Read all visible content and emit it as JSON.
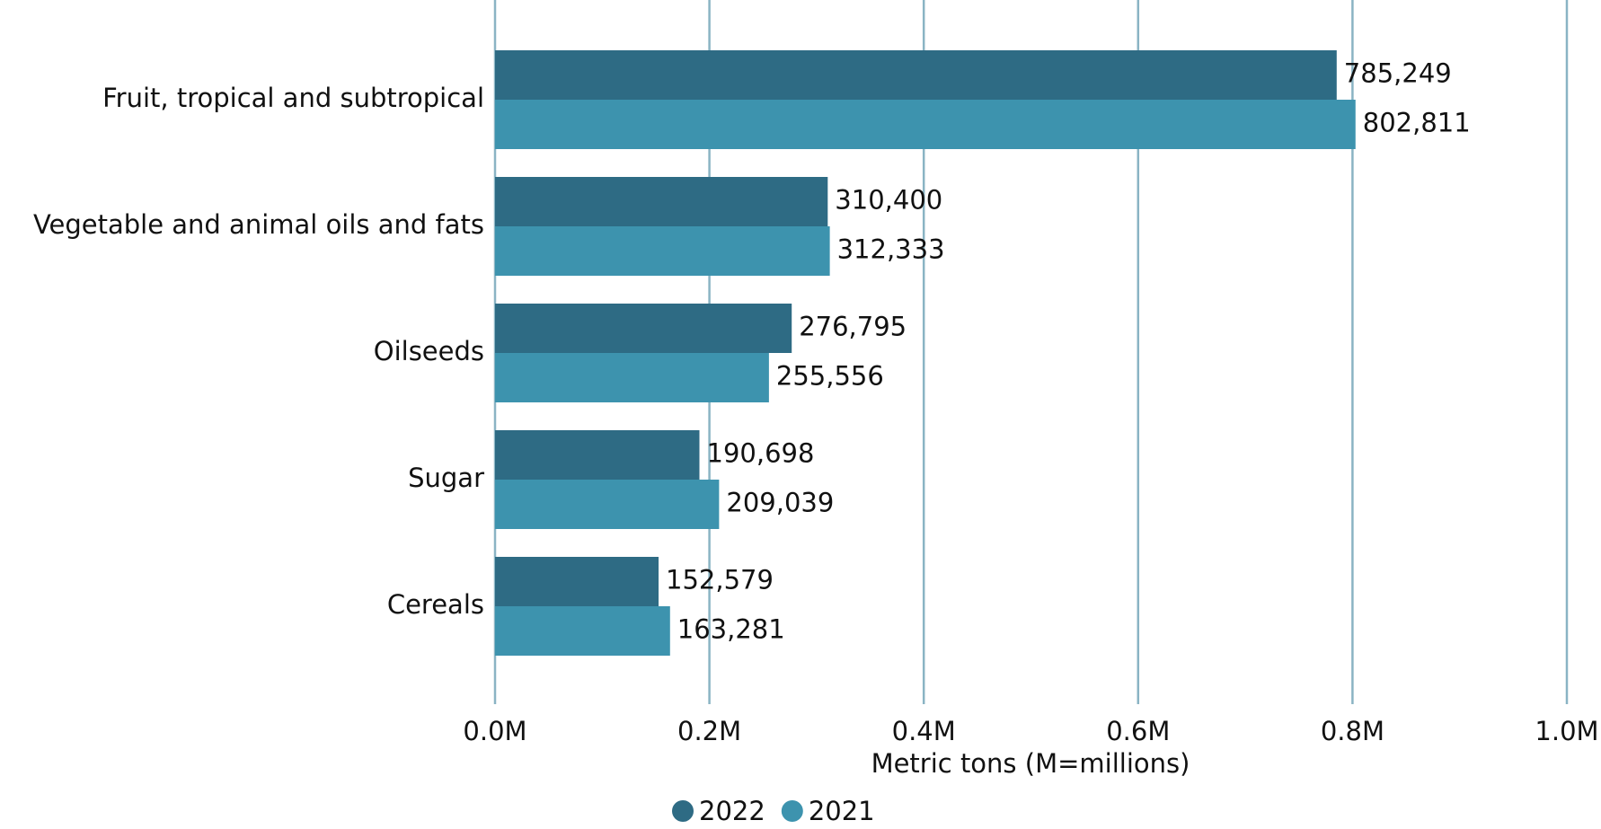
{
  "chart_data": {
    "type": "bar",
    "orientation": "horizontal",
    "x_label": "Metric tons (M=millions)",
    "categories": [
      "Fruit, tropical and subtropical",
      "Vegetable and animal oils and fats",
      "Oilseeds",
      "Sugar",
      "Cereals"
    ],
    "series": [
      {
        "name": "2022",
        "color": "#2e6b84",
        "values": [
          785249,
          310400,
          276795,
          190698,
          152579
        ],
        "value_labels": [
          "785,249",
          "310,400",
          "276,795",
          "190,698",
          "152,579"
        ]
      },
      {
        "name": "2021",
        "color": "#3d93ae",
        "values": [
          802811,
          312333,
          255556,
          209039,
          163281
        ],
        "value_labels": [
          "802,811",
          "312,333",
          "255,556",
          "209,039",
          "163,281"
        ]
      }
    ],
    "xlim": [
      0,
      1000000
    ],
    "xticks": [
      {
        "value": 0,
        "label": "0.0M"
      },
      {
        "value": 200000,
        "label": "0.2M"
      },
      {
        "value": 400000,
        "label": "0.4M"
      },
      {
        "value": 600000,
        "label": "0.6M"
      },
      {
        "value": 800000,
        "label": "0.8M"
      },
      {
        "value": 1000000,
        "label": "1.0M"
      }
    ],
    "grid": true,
    "legend": "bottom"
  }
}
